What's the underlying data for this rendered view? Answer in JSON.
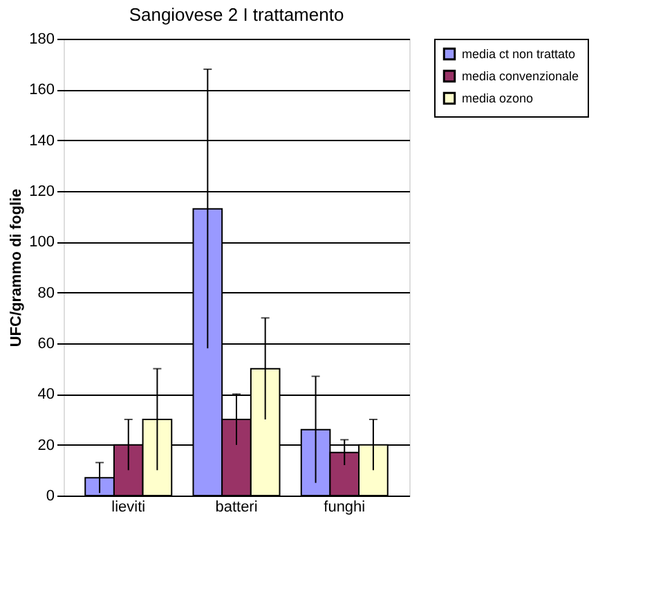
{
  "chart_data": {
    "type": "bar",
    "title": "Sangiovese 2 I trattamento",
    "ylabel": "UFC/grammo di foglie",
    "categories": [
      "lieviti",
      "batteri",
      "funghi"
    ],
    "series": [
      {
        "name": "media ct non trattato",
        "color": "#9999ff",
        "values": [
          7,
          113,
          26
        ],
        "errors": [
          6,
          55,
          21
        ]
      },
      {
        "name": "media convenzionale",
        "color": "#993366",
        "values": [
          20,
          30,
          17
        ],
        "errors": [
          10,
          10,
          5
        ]
      },
      {
        "name": "media ozono",
        "color": "#ffffcc",
        "values": [
          30,
          50,
          20
        ],
        "errors": [
          20,
          20,
          10
        ]
      }
    ],
    "ylim": [
      0,
      180
    ],
    "yticks": [
      0,
      20,
      40,
      60,
      80,
      100,
      120,
      140,
      160,
      180
    ],
    "grid": "y",
    "legend": "right"
  }
}
